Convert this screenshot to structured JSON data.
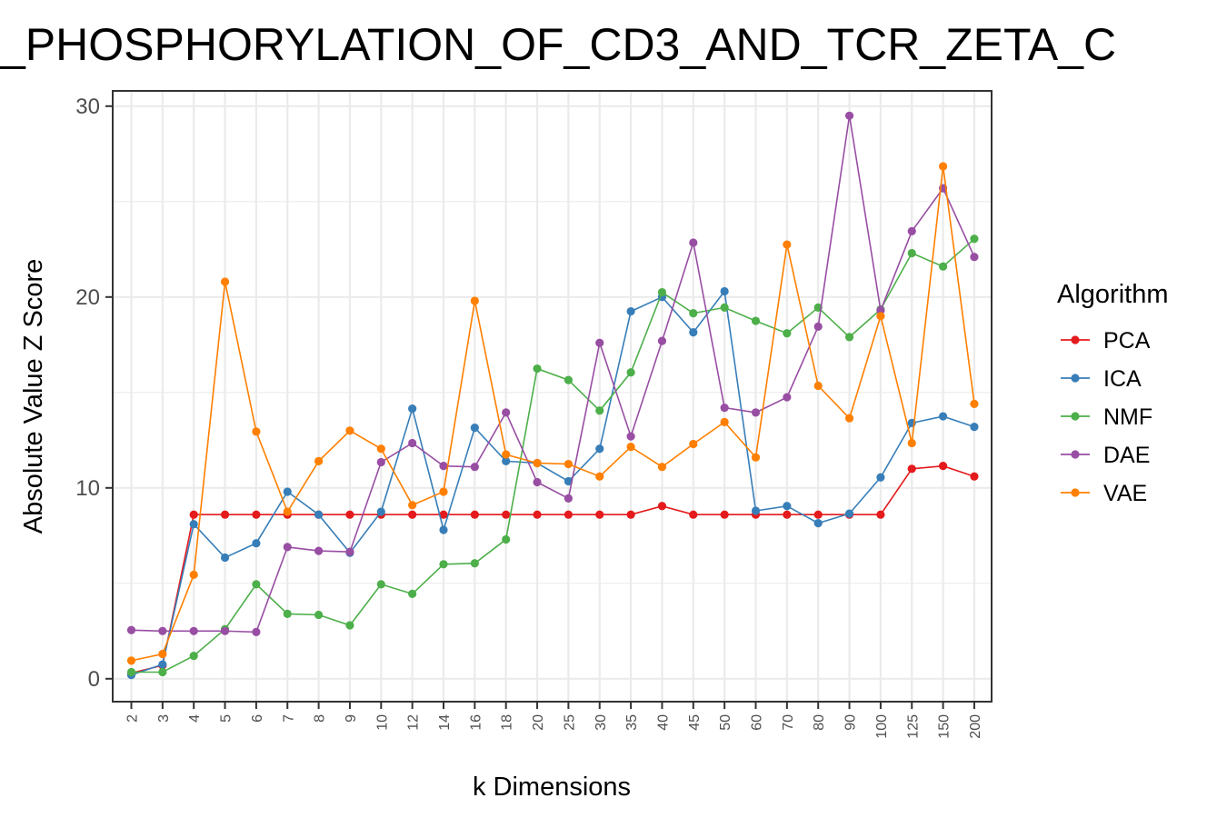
{
  "chart_data": {
    "type": "line",
    "title": "_PHOSPHORYLATION_OF_CD3_AND_TCR_ZETA_C",
    "xlabel": "k Dimensions",
    "ylabel": "Absolute Value Z Score",
    "categories": [
      "2",
      "3",
      "4",
      "5",
      "6",
      "7",
      "8",
      "9",
      "10",
      "12",
      "14",
      "16",
      "18",
      "20",
      "25",
      "30",
      "35",
      "40",
      "45",
      "50",
      "60",
      "70",
      "80",
      "90",
      "100",
      "125",
      "150",
      "200"
    ],
    "ylim": [
      -1.2,
      30.8
    ],
    "yticks": [
      0,
      10,
      20,
      30
    ],
    "grid": true,
    "legend_title": "Algorithm",
    "legend_position": "right",
    "series": [
      {
        "name": "PCA",
        "color": "#e41a1c",
        "values": [
          0.3,
          0.7,
          8.6,
          8.6,
          8.6,
          8.6,
          8.6,
          8.6,
          8.6,
          8.6,
          8.6,
          8.6,
          8.6,
          8.6,
          8.6,
          8.6,
          8.6,
          9.05,
          8.6,
          8.6,
          8.6,
          8.6,
          8.6,
          8.6,
          8.6,
          11.0,
          11.15,
          10.6
        ]
      },
      {
        "name": "ICA",
        "color": "#377eb8",
        "values": [
          0.2,
          0.75,
          8.1,
          6.35,
          7.1,
          9.8,
          8.6,
          6.6,
          8.75,
          14.15,
          7.8,
          13.15,
          11.4,
          11.3,
          10.35,
          12.05,
          19.25,
          20.0,
          18.15,
          20.3,
          8.8,
          9.05,
          8.15,
          8.65,
          10.55,
          13.4,
          13.75,
          13.2
        ]
      },
      {
        "name": "NMF",
        "color": "#4daf4a",
        "values": [
          0.35,
          0.35,
          1.2,
          2.6,
          4.95,
          3.4,
          3.35,
          2.8,
          4.95,
          4.45,
          6.0,
          6.05,
          7.3,
          16.25,
          15.65,
          14.05,
          16.05,
          20.25,
          19.15,
          19.45,
          18.75,
          18.1,
          19.45,
          17.9,
          19.35,
          22.3,
          21.6,
          23.05
        ]
      },
      {
        "name": "DAE",
        "color": "#984ea3",
        "values": [
          2.55,
          2.5,
          2.5,
          2.5,
          2.45,
          6.9,
          6.7,
          6.65,
          11.35,
          12.35,
          11.15,
          11.1,
          13.95,
          10.3,
          9.45,
          17.6,
          12.7,
          17.7,
          22.85,
          14.2,
          13.95,
          14.75,
          18.45,
          29.5,
          19.3,
          23.45,
          25.7,
          22.1
        ]
      },
      {
        "name": "VAE",
        "color": "#ff7f00",
        "values": [
          0.95,
          1.3,
          5.45,
          20.8,
          12.95,
          8.75,
          11.4,
          13.0,
          12.05,
          9.1,
          9.8,
          19.8,
          11.75,
          11.3,
          11.25,
          10.6,
          12.15,
          11.1,
          12.3,
          13.45,
          11.6,
          22.75,
          15.35,
          13.65,
          19.0,
          12.35,
          26.85,
          14.4
        ]
      }
    ]
  }
}
